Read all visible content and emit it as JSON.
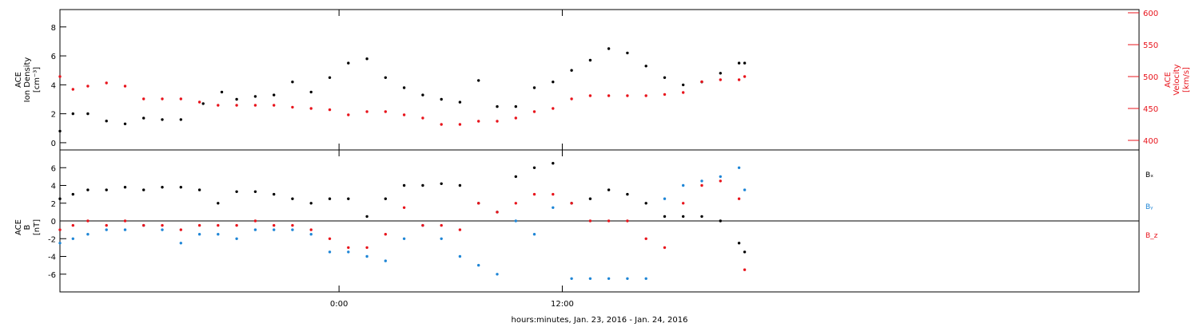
{
  "figure": {
    "xlabel": "hours:minutes, Jan. 23, 2016 - Jan. 24, 2016",
    "colors": {
      "black": "#000000",
      "red": "#e8141c",
      "blue": "#1f86d6"
    }
  },
  "chart_data": [
    {
      "type": "scatter",
      "panel": "top",
      "ylabel_left": [
        "ACE",
        "Ion Density",
        "[cm⁻³]"
      ],
      "ylabel_right": [
        "ACE",
        "Velocity",
        "[km/s]"
      ],
      "xlim": [
        -15,
        43
      ],
      "xticks": [
        {
          "v": 0,
          "label": "0:00"
        },
        {
          "v": 12,
          "label": "12:00"
        }
      ],
      "ylim_left": [
        -0.5,
        9.2
      ],
      "yticks_left": [
        "0",
        "2",
        "4",
        "6",
        "8"
      ],
      "ylim_right": [
        385,
        605
      ],
      "yticks_right": [
        "400",
        "450",
        "500",
        "550",
        "600"
      ],
      "grid": false,
      "series": [
        {
          "color": "black",
          "axis": "left",
          "points": [
            [
              -15,
              0.8
            ],
            [
              -14.3,
              2.0
            ],
            [
              -13.5,
              2.0
            ],
            [
              -12.5,
              1.5
            ],
            [
              -11.5,
              1.3
            ],
            [
              -10.5,
              1.7
            ],
            [
              -9.5,
              1.6
            ],
            [
              -8.5,
              1.6
            ],
            [
              -7.3,
              2.7
            ],
            [
              -6.3,
              3.5
            ],
            [
              -5.5,
              3.0
            ],
            [
              -4.5,
              3.2
            ],
            [
              -3.5,
              3.3
            ],
            [
              -2.5,
              4.2
            ],
            [
              -1.5,
              3.5
            ],
            [
              -0.5,
              4.5
            ],
            [
              0.5,
              5.5
            ],
            [
              1.5,
              5.8
            ],
            [
              2.5,
              4.5
            ],
            [
              3.5,
              3.8
            ],
            [
              4.5,
              3.3
            ],
            [
              5.5,
              3.0
            ],
            [
              6.5,
              2.8
            ],
            [
              7.5,
              4.3
            ],
            [
              8.5,
              2.5
            ],
            [
              9.5,
              2.5
            ],
            [
              10.5,
              3.8
            ],
            [
              11.5,
              4.2
            ],
            [
              12.5,
              5.0
            ],
            [
              13.5,
              5.7
            ],
            [
              14.5,
              6.5
            ],
            [
              15.5,
              6.2
            ],
            [
              16.5,
              5.3
            ],
            [
              17.5,
              4.5
            ],
            [
              18.5,
              4.0
            ],
            [
              19.5,
              4.2
            ],
            [
              20.5,
              4.8
            ],
            [
              21.5,
              5.5
            ],
            [
              21.8,
              5.5
            ]
          ]
        },
        {
          "color": "red",
          "axis": "right",
          "points": [
            [
              -15,
              500
            ],
            [
              -14.3,
              480
            ],
            [
              -13.5,
              485
            ],
            [
              -12.5,
              490
            ],
            [
              -11.5,
              485
            ],
            [
              -10.5,
              465
            ],
            [
              -9.5,
              465
            ],
            [
              -8.5,
              465
            ],
            [
              -7.5,
              460
            ],
            [
              -6.5,
              455
            ],
            [
              -5.5,
              455
            ],
            [
              -4.5,
              455
            ],
            [
              -3.5,
              455
            ],
            [
              -2.5,
              452
            ],
            [
              -1.5,
              450
            ],
            [
              -0.5,
              448
            ],
            [
              0.5,
              440
            ],
            [
              1.5,
              445
            ],
            [
              2.5,
              445
            ],
            [
              3.5,
              440
            ],
            [
              4.5,
              435
            ],
            [
              5.5,
              425
            ],
            [
              6.5,
              425
            ],
            [
              7.5,
              430
            ],
            [
              8.5,
              430
            ],
            [
              9.5,
              435
            ],
            [
              10.5,
              445
            ],
            [
              11.5,
              450
            ],
            [
              12.5,
              465
            ],
            [
              13.5,
              470
            ],
            [
              14.5,
              470
            ],
            [
              15.5,
              470
            ],
            [
              16.5,
              470
            ],
            [
              17.5,
              472
            ],
            [
              18.5,
              475
            ],
            [
              19.5,
              492
            ],
            [
              20.5,
              495
            ],
            [
              21.5,
              495
            ],
            [
              21.8,
              500
            ]
          ]
        }
      ]
    },
    {
      "type": "scatter",
      "panel": "bottom",
      "ylabel_left": [
        "ACE",
        "B",
        "[nT]"
      ],
      "xlim": [
        -15,
        43
      ],
      "xticks": [
        {
          "v": 0,
          "label": "0:00"
        },
        {
          "v": 12,
          "label": "12:00"
        }
      ],
      "ylim": [
        -8,
        8
      ],
      "yticks": [
        "-6",
        "-4",
        "-2",
        "0",
        "2",
        "4",
        "6"
      ],
      "zero_line": true,
      "grid": false,
      "legend": {
        "placement": "right",
        "entries": [
          "Bₓ",
          "Bᵧ",
          "B_z"
        ]
      },
      "series": [
        {
          "name": "Bₓ",
          "color": "black",
          "points": [
            [
              -15,
              2.5
            ],
            [
              -14.3,
              3.0
            ],
            [
              -13.5,
              3.5
            ],
            [
              -12.5,
              3.5
            ],
            [
              -11.5,
              3.8
            ],
            [
              -10.5,
              3.5
            ],
            [
              -9.5,
              3.8
            ],
            [
              -8.5,
              3.8
            ],
            [
              -7.5,
              3.5
            ],
            [
              -6.5,
              2.0
            ],
            [
              -5.5,
              3.3
            ],
            [
              -4.5,
              3.3
            ],
            [
              -3.5,
              3.0
            ],
            [
              -2.5,
              2.5
            ],
            [
              -1.5,
              2.0
            ],
            [
              -0.5,
              2.5
            ],
            [
              0.5,
              2.5
            ],
            [
              1.5,
              0.5
            ],
            [
              2.5,
              2.5
            ],
            [
              3.5,
              4.0
            ],
            [
              4.5,
              4.0
            ],
            [
              5.5,
              4.2
            ],
            [
              6.5,
              4.0
            ],
            [
              7.5,
              2.0
            ],
            [
              8.5,
              1.0
            ],
            [
              9.5,
              5.0
            ],
            [
              10.5,
              6.0
            ],
            [
              11.5,
              6.5
            ],
            [
              12.5,
              2.0
            ],
            [
              13.5,
              2.5
            ],
            [
              14.5,
              3.5
            ],
            [
              15.5,
              3.0
            ],
            [
              16.5,
              2.0
            ],
            [
              17.5,
              0.5
            ],
            [
              18.5,
              0.5
            ],
            [
              19.5,
              0.5
            ],
            [
              20.5,
              0.0
            ],
            [
              21.5,
              -2.5
            ],
            [
              21.8,
              -3.5
            ]
          ]
        },
        {
          "name": "Bᵧ",
          "color": "blue",
          "points": [
            [
              -15,
              -2.5
            ],
            [
              -14.3,
              -2.0
            ],
            [
              -13.5,
              -1.5
            ],
            [
              -12.5,
              -1.0
            ],
            [
              -11.5,
              -1.0
            ],
            [
              -10.5,
              -0.5
            ],
            [
              -9.5,
              -1.0
            ],
            [
              -8.5,
              -2.5
            ],
            [
              -7.5,
              -1.5
            ],
            [
              -6.5,
              -1.5
            ],
            [
              -5.5,
              -2.0
            ],
            [
              -4.5,
              -1.0
            ],
            [
              -3.5,
              -1.0
            ],
            [
              -2.5,
              -1.0
            ],
            [
              -1.5,
              -1.5
            ],
            [
              -0.5,
              -3.5
            ],
            [
              0.5,
              -3.5
            ],
            [
              1.5,
              -4.0
            ],
            [
              2.5,
              -4.5
            ],
            [
              3.5,
              -2.0
            ],
            [
              4.5,
              -0.5
            ],
            [
              5.5,
              -2.0
            ],
            [
              6.5,
              -4.0
            ],
            [
              7.5,
              -5.0
            ],
            [
              8.5,
              -6.0
            ],
            [
              9.5,
              0.0
            ],
            [
              10.5,
              -1.5
            ],
            [
              11.5,
              1.5
            ],
            [
              12.5,
              -6.5
            ],
            [
              13.5,
              -6.5
            ],
            [
              14.5,
              -6.5
            ],
            [
              15.5,
              -6.5
            ],
            [
              16.5,
              -6.5
            ],
            [
              17.5,
              2.5
            ],
            [
              18.5,
              4.0
            ],
            [
              19.5,
              4.5
            ],
            [
              20.5,
              5.0
            ],
            [
              21.5,
              6.0
            ],
            [
              21.8,
              3.5
            ]
          ]
        },
        {
          "name": "B_z",
          "color": "red",
          "points": [
            [
              -15,
              -1.0
            ],
            [
              -14.3,
              -0.5
            ],
            [
              -13.5,
              0.0
            ],
            [
              -12.5,
              -0.5
            ],
            [
              -11.5,
              0.0
            ],
            [
              -10.5,
              -0.5
            ],
            [
              -9.5,
              -0.5
            ],
            [
              -8.5,
              -1.0
            ],
            [
              -7.5,
              -0.5
            ],
            [
              -6.5,
              -0.5
            ],
            [
              -5.5,
              -0.5
            ],
            [
              -4.5,
              0.0
            ],
            [
              -3.5,
              -0.5
            ],
            [
              -2.5,
              -0.5
            ],
            [
              -1.5,
              -1.0
            ],
            [
              -0.5,
              -2.0
            ],
            [
              0.5,
              -3.0
            ],
            [
              1.5,
              -3.0
            ],
            [
              2.5,
              -1.5
            ],
            [
              3.5,
              1.5
            ],
            [
              4.5,
              -0.5
            ],
            [
              5.5,
              -0.5
            ],
            [
              6.5,
              -1.0
            ],
            [
              7.5,
              2.0
            ],
            [
              8.5,
              1.0
            ],
            [
              9.5,
              2.0
            ],
            [
              10.5,
              3.0
            ],
            [
              11.5,
              3.0
            ],
            [
              12.5,
              2.0
            ],
            [
              13.5,
              0.0
            ],
            [
              14.5,
              0.0
            ],
            [
              15.5,
              0.0
            ],
            [
              16.5,
              -2.0
            ],
            [
              17.5,
              -3.0
            ],
            [
              18.5,
              2.0
            ],
            [
              19.5,
              4.0
            ],
            [
              20.5,
              4.5
            ],
            [
              21.5,
              2.5
            ],
            [
              21.8,
              -5.5
            ]
          ]
        }
      ]
    }
  ]
}
